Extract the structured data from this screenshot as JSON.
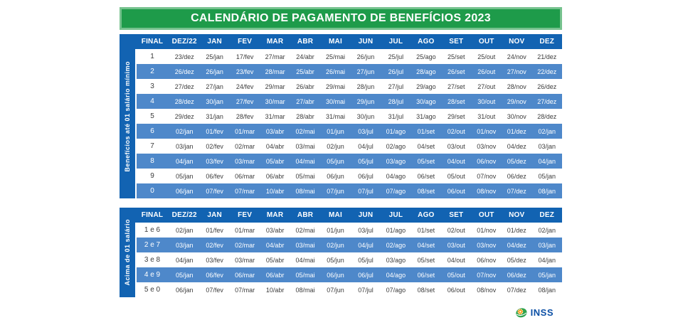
{
  "title": "CALENDÁRIO DE PAGAMENTO DE BENEFÍCIOS 2023",
  "columns": [
    "FINAL",
    "DEZ/22",
    "JAN",
    "FEV",
    "MAR",
    "ABR",
    "MAI",
    "JUN",
    "JUL",
    "AGO",
    "SET",
    "OUT",
    "NOV",
    "DEZ"
  ],
  "tables": [
    {
      "side_label": "Benefícios até 01 salário mínimo",
      "rows": [
        {
          "final": "1",
          "dates": [
            "23/dez",
            "25/jan",
            "17/fev",
            "27/mar",
            "24/abr",
            "25/mai",
            "26/jun",
            "25/jul",
            "25/ago",
            "25/set",
            "25/out",
            "24/nov",
            "21/dez"
          ]
        },
        {
          "final": "2",
          "dates": [
            "26/dez",
            "26/jan",
            "23/fev",
            "28/mar",
            "25/abr",
            "26/mai",
            "27/jun",
            "26/jul",
            "28/ago",
            "26/set",
            "26/out",
            "27/nov",
            "22/dez"
          ]
        },
        {
          "final": "3",
          "dates": [
            "27/dez",
            "27/jan",
            "24/fev",
            "29/mar",
            "26/abr",
            "29/mai",
            "28/jun",
            "27/jul",
            "29/ago",
            "27/set",
            "27/out",
            "28/nov",
            "26/dez"
          ]
        },
        {
          "final": "4",
          "dates": [
            "28/dez",
            "30/jan",
            "27/fev",
            "30/mar",
            "27/abr",
            "30/mai",
            "29/jun",
            "28/jul",
            "30/ago",
            "28/set",
            "30/out",
            "29/nov",
            "27/dez"
          ]
        },
        {
          "final": "5",
          "dates": [
            "29/dez",
            "31/jan",
            "28/fev",
            "31/mar",
            "28/abr",
            "31/mai",
            "30/jun",
            "31/jul",
            "31/ago",
            "29/set",
            "31/out",
            "30/nov",
            "28/dez"
          ]
        },
        {
          "final": "6",
          "dates": [
            "02/jan",
            "01/fev",
            "01/mar",
            "03/abr",
            "02/mai",
            "01/jun",
            "03/jul",
            "01/ago",
            "01/set",
            "02/out",
            "01/nov",
            "01/dez",
            "02/jan"
          ]
        },
        {
          "final": "7",
          "dates": [
            "03/jan",
            "02/fev",
            "02/mar",
            "04/abr",
            "03/mai",
            "02/jun",
            "04/jul",
            "02/ago",
            "04/set",
            "03/out",
            "03/nov",
            "04/dez",
            "03/jan"
          ]
        },
        {
          "final": "8",
          "dates": [
            "04/jan",
            "03/fev",
            "03/mar",
            "05/abr",
            "04/mai",
            "05/jun",
            "05/jul",
            "03/ago",
            "05/set",
            "04/out",
            "06/nov",
            "05/dez",
            "04/jan"
          ]
        },
        {
          "final": "9",
          "dates": [
            "05/jan",
            "06/fev",
            "06/mar",
            "06/abr",
            "05/mai",
            "06/jun",
            "06/jul",
            "04/ago",
            "06/set",
            "05/out",
            "07/nov",
            "06/dez",
            "05/jan"
          ]
        },
        {
          "final": "0",
          "dates": [
            "06/jan",
            "07/fev",
            "07/mar",
            "10/abr",
            "08/mai",
            "07/jun",
            "07/jul",
            "07/ago",
            "08/set",
            "06/out",
            "08/nov",
            "07/dez",
            "08/jan"
          ]
        }
      ]
    },
    {
      "side_label": "Acima de 01 salário",
      "rows": [
        {
          "final": "1 e 6",
          "dates": [
            "02/jan",
            "01/fev",
            "01/mar",
            "03/abr",
            "02/mai",
            "01/jun",
            "03/jul",
            "01/ago",
            "01/set",
            "02/out",
            "01/nov",
            "01/dez",
            "02/jan"
          ]
        },
        {
          "final": "2 e 7",
          "dates": [
            "03/jan",
            "02/fev",
            "02/mar",
            "04/abr",
            "03/mai",
            "02/jun",
            "04/jul",
            "02/ago",
            "04/set",
            "03/out",
            "03/nov",
            "04/dez",
            "03/jan"
          ]
        },
        {
          "final": "3 e 8",
          "dates": [
            "04/jan",
            "03/fev",
            "03/mar",
            "05/abr",
            "04/mai",
            "05/jun",
            "05/jul",
            "03/ago",
            "05/set",
            "04/out",
            "06/nov",
            "05/dez",
            "04/jan"
          ]
        },
        {
          "final": "4 e 9",
          "dates": [
            "05/jan",
            "06/fev",
            "06/mar",
            "06/abr",
            "05/mai",
            "06/jun",
            "06/jul",
            "04/ago",
            "06/set",
            "05/out",
            "07/nov",
            "06/dez",
            "05/jan"
          ]
        },
        {
          "final": "5 e 0",
          "dates": [
            "06/jan",
            "07/fev",
            "07/mar",
            "10/abr",
            "08/mai",
            "07/jun",
            "07/jul",
            "07/ago",
            "08/set",
            "06/out",
            "08/nov",
            "07/dez",
            "08/jan"
          ]
        }
      ]
    }
  ],
  "footer": {
    "logo_text": "INSS",
    "logo_icon": "inss-flower-icon"
  },
  "colors": {
    "green": "#1e9b4a",
    "green_border": "#76c28e",
    "header_blue": "#1263b2",
    "stripe_blue": "#4e88ca",
    "dark_text": "#3b3b3b",
    "logo_blue": "#0b4fa5",
    "logo_orange": "#f39200",
    "logo_green": "#2da44e"
  }
}
